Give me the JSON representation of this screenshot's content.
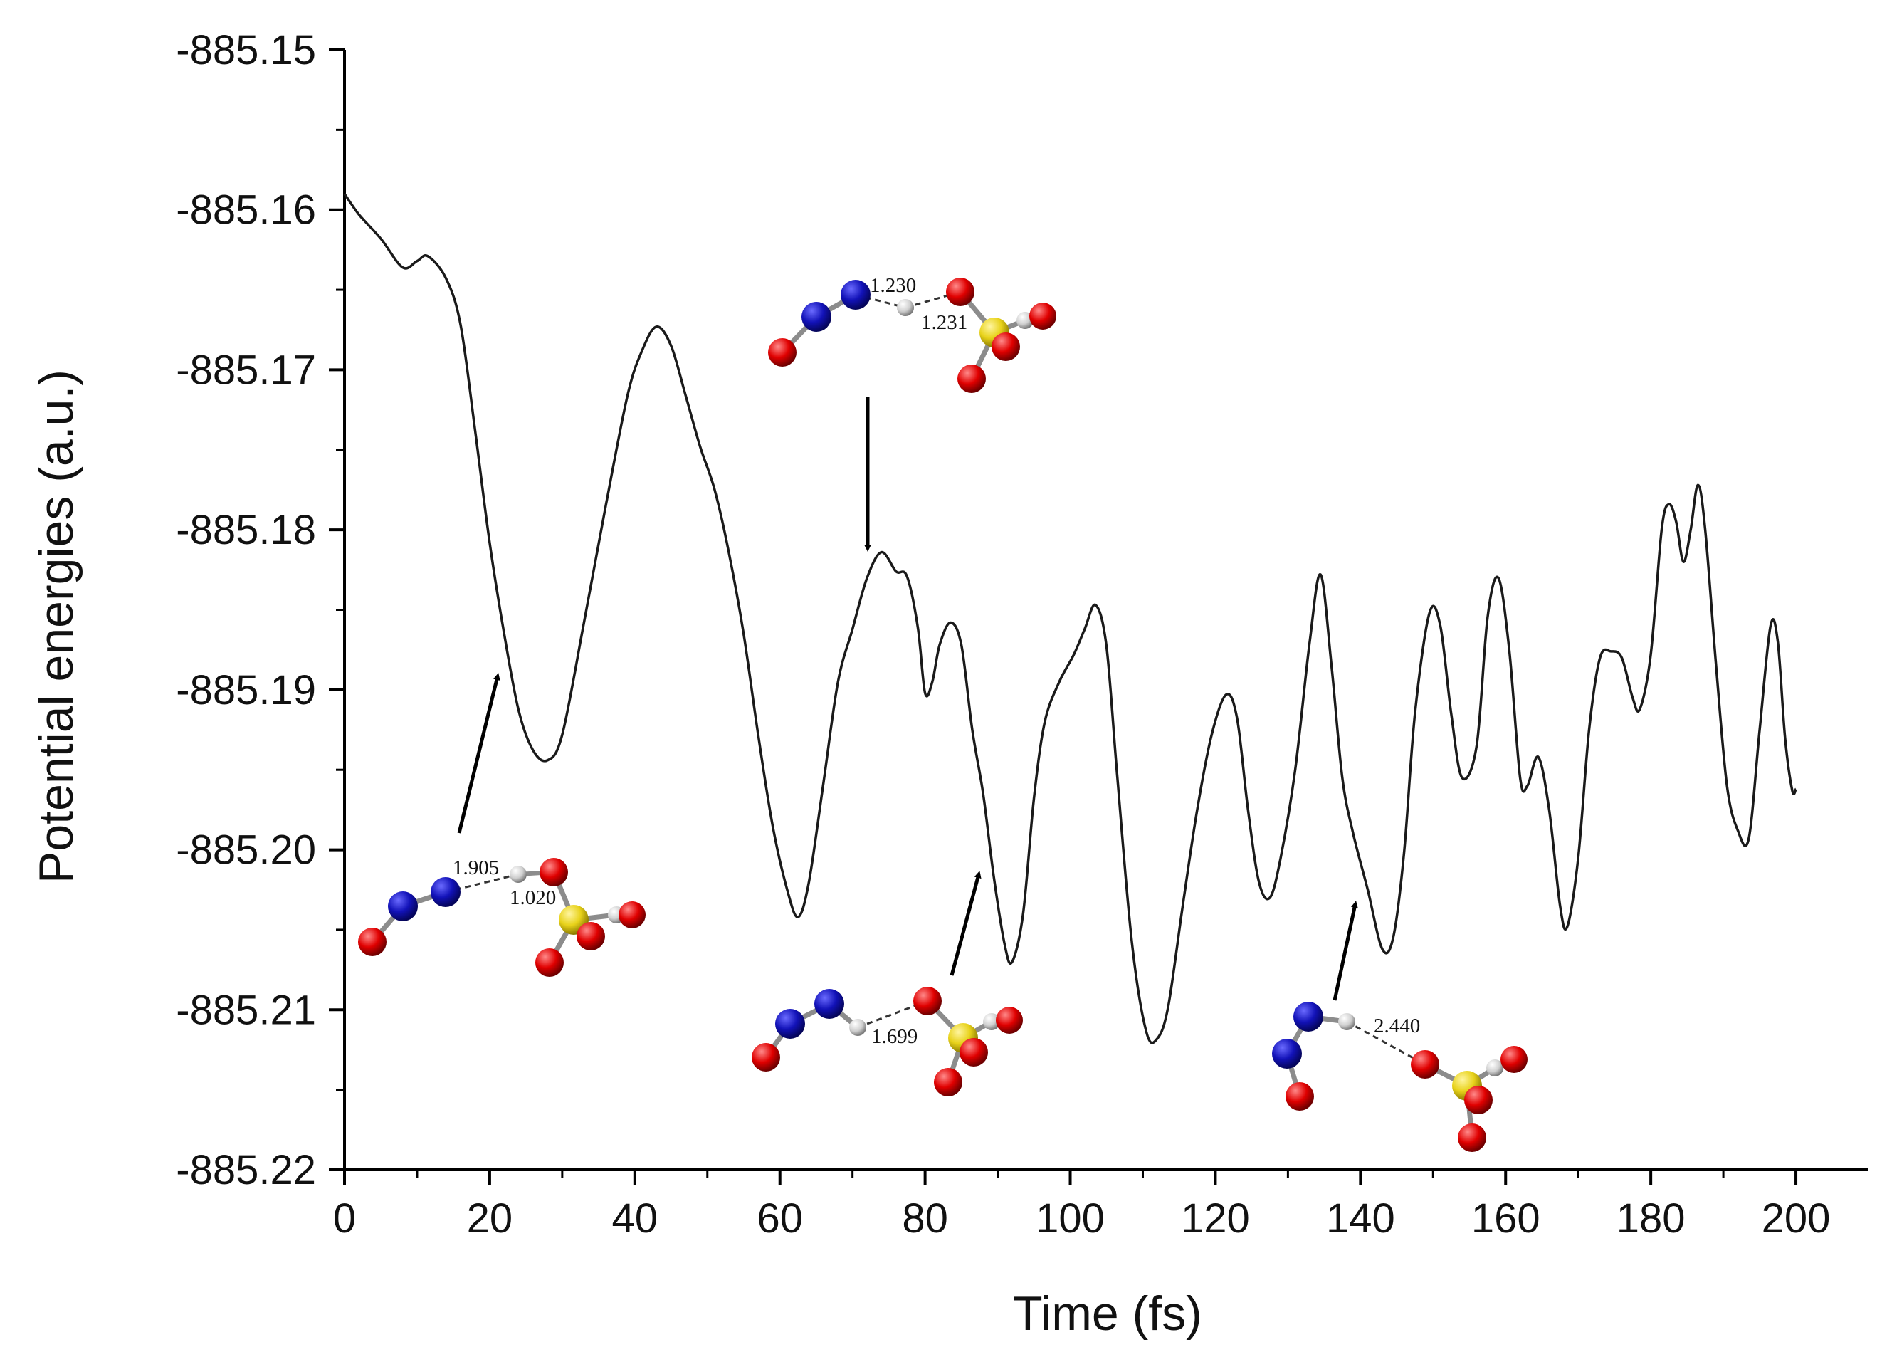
{
  "chart_data": {
    "type": "line",
    "title": "",
    "xlabel": "Time (fs)",
    "ylabel": "Potential energies (a.u.)",
    "xlim": [
      0,
      210
    ],
    "ylim": [
      -885.22,
      -885.15
    ],
    "xticks": [
      "0",
      "20",
      "40",
      "60",
      "80",
      "100",
      "120",
      "140",
      "160",
      "180",
      "200"
    ],
    "yticks": [
      "-885.15",
      "-885.16",
      "-885.17",
      "-885.18",
      "-885.19",
      "-885.20",
      "-885.21",
      "-885.22"
    ],
    "grid": false,
    "series": [
      {
        "name": "Potential energy",
        "color": "#1a1a1a",
        "points": [
          [
            0,
            -885.159
          ],
          [
            2,
            -885.1603
          ],
          [
            5,
            -885.1618
          ],
          [
            8,
            -885.1636
          ],
          [
            10,
            -885.1632
          ],
          [
            11.5,
            -885.1629
          ],
          [
            14,
            -885.1643
          ],
          [
            16,
            -885.1672
          ],
          [
            18,
            -885.1738
          ],
          [
            20,
            -885.1808
          ],
          [
            22,
            -885.1865
          ],
          [
            24,
            -885.1913
          ],
          [
            26,
            -885.1938
          ],
          [
            28,
            -885.1944
          ],
          [
            30,
            -885.1928
          ],
          [
            33,
            -885.1858
          ],
          [
            36,
            -885.1785
          ],
          [
            39,
            -885.1716
          ],
          [
            41,
            -885.1688
          ],
          [
            43,
            -885.1673
          ],
          [
            45,
            -885.1685
          ],
          [
            47,
            -885.1716
          ],
          [
            49,
            -885.1748
          ],
          [
            51,
            -885.1775
          ],
          [
            53,
            -885.1815
          ],
          [
            55,
            -885.1865
          ],
          [
            57,
            -885.1928
          ],
          [
            59,
            -885.1985
          ],
          [
            61,
            -885.2025
          ],
          [
            62.5,
            -885.2042
          ],
          [
            64,
            -885.202
          ],
          [
            66,
            -885.1958
          ],
          [
            68,
            -885.1895
          ],
          [
            70,
            -885.1862
          ],
          [
            72,
            -885.183
          ],
          [
            74,
            -885.1814
          ],
          [
            76,
            -885.1826
          ],
          [
            77.5,
            -885.1829
          ],
          [
            79,
            -885.1861
          ],
          [
            80,
            -885.1902
          ],
          [
            81,
            -885.1895
          ],
          [
            82,
            -885.1872
          ],
          [
            83.5,
            -885.1858
          ],
          [
            85,
            -885.1872
          ],
          [
            86.5,
            -885.1925
          ],
          [
            88,
            -885.1965
          ],
          [
            89.5,
            -885.2018
          ],
          [
            91,
            -885.206
          ],
          [
            92,
            -885.207
          ],
          [
            93.5,
            -885.204
          ],
          [
            95,
            -885.1968
          ],
          [
            96.5,
            -885.192
          ],
          [
            98.5,
            -885.1895
          ],
          [
            100.5,
            -885.1878
          ],
          [
            102,
            -885.1862
          ],
          [
            103.5,
            -885.1847
          ],
          [
            105,
            -885.1873
          ],
          [
            106.5,
            -885.1955
          ],
          [
            108.5,
            -885.2058
          ],
          [
            110.5,
            -885.2114
          ],
          [
            112,
            -885.2118
          ],
          [
            113.5,
            -885.2098
          ],
          [
            115.5,
            -885.2035
          ],
          [
            117.5,
            -885.1975
          ],
          [
            119.5,
            -885.1928
          ],
          [
            121.5,
            -885.1903
          ],
          [
            123,
            -885.1918
          ],
          [
            124.5,
            -885.1975
          ],
          [
            126,
            -885.202
          ],
          [
            127.5,
            -885.203
          ],
          [
            129,
            -885.2005
          ],
          [
            131,
            -885.195
          ],
          [
            133,
            -885.187
          ],
          [
            134.5,
            -885.1828
          ],
          [
            136,
            -885.1885
          ],
          [
            137.5,
            -885.1955
          ],
          [
            139,
            -885.199
          ],
          [
            141,
            -885.2025
          ],
          [
            143,
            -885.2062
          ],
          [
            144.5,
            -885.2055
          ],
          [
            146,
            -885.2002
          ],
          [
            147.5,
            -885.1915
          ],
          [
            149.5,
            -885.1852
          ],
          [
            151,
            -885.186
          ],
          [
            152.5,
            -885.1915
          ],
          [
            154,
            -885.1955
          ],
          [
            156,
            -885.1935
          ],
          [
            157.5,
            -885.1855
          ],
          [
            159,
            -885.183
          ],
          [
            160.5,
            -885.1875
          ],
          [
            162,
            -885.1955
          ],
          [
            163,
            -885.196
          ],
          [
            164.5,
            -885.1942
          ],
          [
            166,
            -885.1975
          ],
          [
            167.5,
            -885.2035
          ],
          [
            168.5,
            -885.2048
          ],
          [
            170,
            -885.2005
          ],
          [
            171.5,
            -885.1925
          ],
          [
            173,
            -885.188
          ],
          [
            174.5,
            -885.1876
          ],
          [
            176,
            -885.188
          ],
          [
            177.5,
            -885.1905
          ],
          [
            178.5,
            -885.1912
          ],
          [
            180,
            -885.1878
          ],
          [
            181.5,
            -885.18
          ],
          [
            182.5,
            -885.1784
          ],
          [
            183.5,
            -885.1795
          ],
          [
            184.5,
            -885.182
          ],
          [
            185.5,
            -885.18
          ],
          [
            186.5,
            -885.1772
          ],
          [
            187.5,
            -885.18
          ],
          [
            189,
            -885.1885
          ],
          [
            190.5,
            -885.196
          ],
          [
            192,
            -885.1988
          ],
          [
            193.5,
            -885.1993
          ],
          [
            195,
            -885.1925
          ],
          [
            196.5,
            -885.186
          ],
          [
            197.5,
            -885.187
          ],
          [
            198.5,
            -885.193
          ],
          [
            199.5,
            -885.1963
          ],
          [
            200,
            -885.1962
          ]
        ]
      }
    ],
    "annotations": [
      {
        "label": "structure near 22 fs",
        "bond_lengths": [
          "1.905",
          "1.020"
        ]
      },
      {
        "label": "structure near 74 fs",
        "bond_lengths": [
          "1.230",
          "1.231"
        ]
      },
      {
        "label": "structure near 88 fs",
        "bond_lengths": [
          "1.699"
        ]
      },
      {
        "label": "structure near 140 fs",
        "bond_lengths": [
          "2.440"
        ]
      }
    ]
  },
  "atom_colors": {
    "nitrogen": "#1212b8",
    "oxygen": "#e00000",
    "hydrogen": "#d9d9d9",
    "sulfur": "#e8d21a"
  }
}
